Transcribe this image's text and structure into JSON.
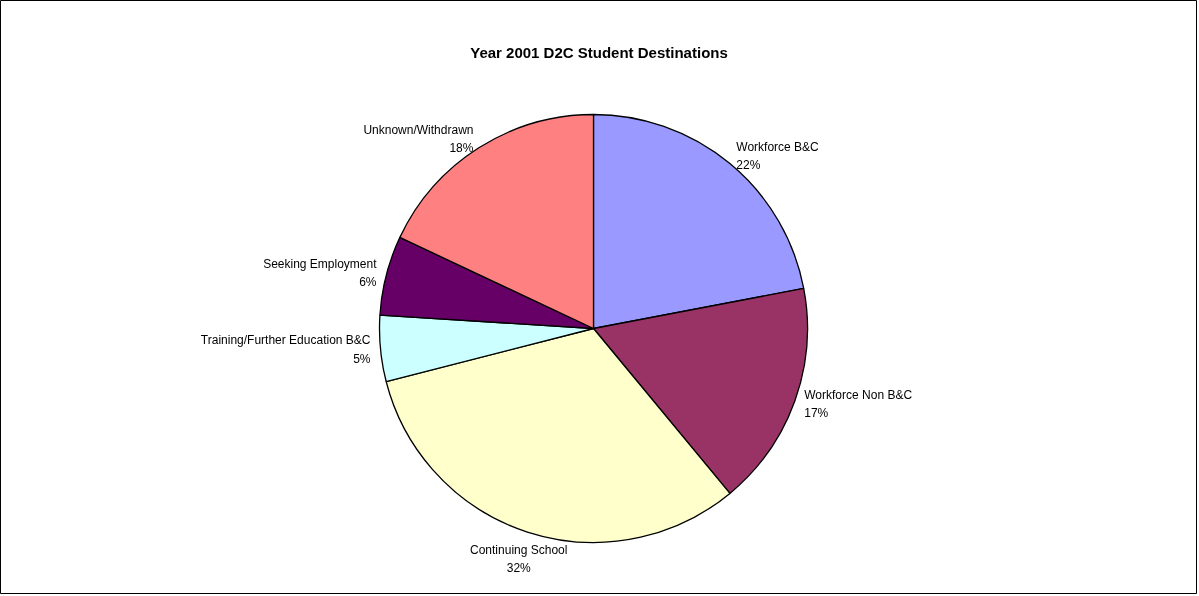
{
  "chart_data": {
    "type": "pie",
    "title": "Year 2001 D2C Student Destinations",
    "categories": [
      "Workforce B&C",
      "Workforce Non B&C",
      "Continuing School",
      "Training/Further Education B&C",
      "Seeking Employment",
      "Unknown/Withdrawn"
    ],
    "values": [
      22,
      17,
      32,
      5,
      6,
      18
    ],
    "value_labels": [
      "22%",
      "17%",
      "32%",
      "5%",
      "6%",
      "18%"
    ],
    "colors": [
      "#9999ff",
      "#993366",
      "#ffffcc",
      "#ccffff",
      "#660066",
      "#ff8080"
    ],
    "legend": false
  }
}
